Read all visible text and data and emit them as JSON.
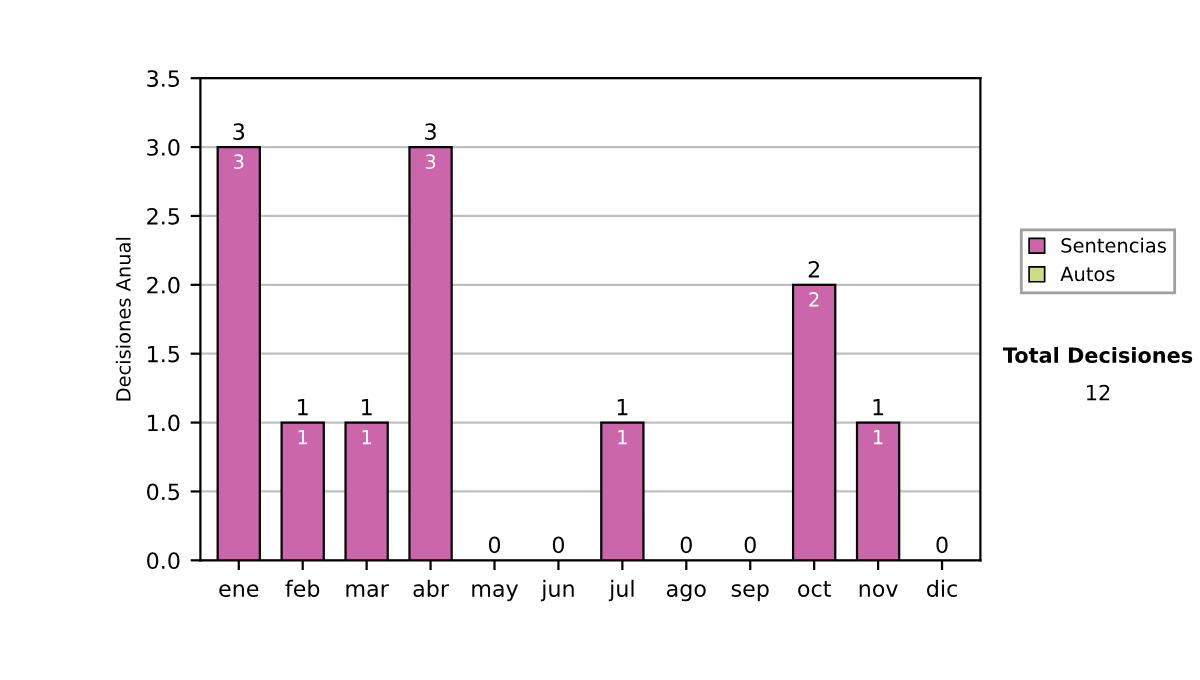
{
  "chart_data": {
    "type": "bar",
    "stacked": true,
    "ylabel": "Decisiones Anual",
    "categories": [
      "ene",
      "feb",
      "mar",
      "abr",
      "may",
      "jun",
      "jul",
      "ago",
      "sep",
      "oct",
      "nov",
      "dic"
    ],
    "series": [
      {
        "name": "Sentencias",
        "color": "#cc66aa",
        "values": [
          3,
          1,
          1,
          3,
          0,
          0,
          1,
          0,
          0,
          2,
          1,
          0
        ],
        "value_labels": [
          "3",
          "1",
          "1",
          "3",
          null,
          null,
          "1",
          null,
          null,
          "2",
          "1",
          null
        ]
      },
      {
        "name": "Autos",
        "color": "#ccdd88",
        "values": [
          0,
          0,
          0,
          0,
          0,
          0,
          0,
          0,
          0,
          0,
          0,
          0
        ]
      }
    ],
    "totals": [
      "3",
      "1",
      "1",
      "3",
      "0",
      "0",
      "1",
      "0",
      "0",
      "2",
      "1",
      "0"
    ],
    "ylim": [
      0,
      3.5
    ],
    "yticks": [
      {
        "value": 0,
        "label": "0.0"
      },
      {
        "value": 0.5,
        "label": "0.5"
      },
      {
        "value": 1,
        "label": "1.0"
      },
      {
        "value": 1.5,
        "label": "1.5"
      },
      {
        "value": 2,
        "label": "2.0"
      },
      {
        "value": 2.5,
        "label": "2.5"
      },
      {
        "value": 3,
        "label": "3.0"
      },
      {
        "value": 3.5,
        "label": "3.5"
      }
    ],
    "grid": "y",
    "legend": "right",
    "annotations": [
      "Total Decisiones",
      "12"
    ]
  }
}
